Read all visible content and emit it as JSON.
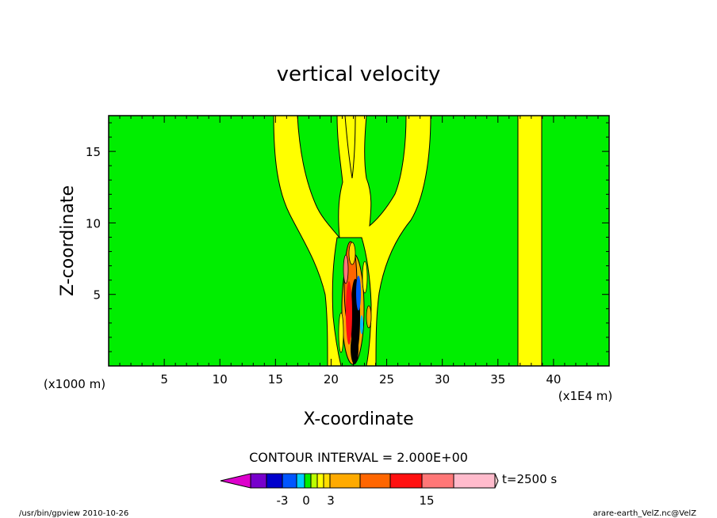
{
  "chart_data": {
    "type": "heatmap",
    "title": "vertical velocity",
    "xlabel": "X-coordinate",
    "ylabel": "Z-coordinate",
    "x_unit_label": "(x1000 m)",
    "x_scale_label": "(x1E4 m)",
    "xlim": [
      0,
      45
    ],
    "ylim": [
      0,
      17.5
    ],
    "x_ticks": [
      "5",
      "10",
      "15",
      "20",
      "25",
      "30",
      "35",
      "40"
    ],
    "y_ticks": [
      "5",
      "10",
      "15"
    ],
    "background_color": "#00ee00",
    "features": [
      {
        "kind": "plume",
        "color": "#ffff00",
        "x_center": 22.2,
        "width_at_top": 14,
        "width_at_bottom": 3.5
      },
      {
        "kind": "column",
        "color": "#ffff00",
        "x_range": [
          37.2,
          38.8
        ],
        "z_range": [
          0,
          17.5
        ]
      },
      {
        "kind": "core",
        "x_center": 22,
        "z_range": [
          0,
          9
        ],
        "colors": [
          "#000000",
          "#ff0000",
          "#ff6600",
          "#0000cc",
          "#00bbff"
        ]
      }
    ],
    "contour_interval": "CONTOUR INTERVAL = 2.000E+00",
    "colorbar": {
      "colors": [
        "#dd00cc",
        "#7700cc",
        "#0000cc",
        "#0055ff",
        "#00ccff",
        "#00ee00",
        "#bbff00",
        "#ffff00",
        "#ffdd00",
        "#ffaa00",
        "#ff6600",
        "#ff1010",
        "#ff7777",
        "#ffbbcc",
        "#ffd8d8"
      ],
      "tick_labels": [
        "-3",
        "0",
        "3",
        "15"
      ],
      "time_label": "t=2500 s"
    }
  },
  "footer": {
    "left": "/usr/bin/gpview   2010-10-26",
    "right": "arare-earth_VelZ.nc@VelZ"
  }
}
